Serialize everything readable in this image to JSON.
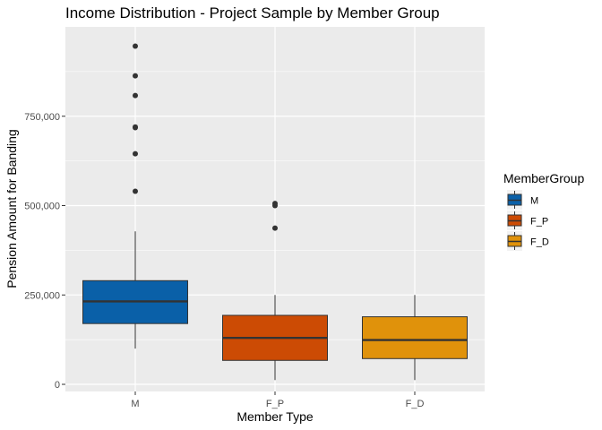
{
  "chart_data": {
    "type": "boxplot",
    "title": "Income Distribution - Project Sample by Member Group",
    "xlabel": "Member Type",
    "ylabel": "Pension Amount for Banding",
    "categories": [
      "M",
      "F_P",
      "F_D"
    ],
    "ylim": [
      -20000,
      1000000
    ],
    "yticks": [
      0,
      250000,
      500000,
      750000
    ],
    "ytick_labels": [
      "0",
      "250,000",
      "500,000",
      "750,000"
    ],
    "grid": true,
    "legend": {
      "title": "MemberGroup",
      "position": "right",
      "entries": [
        "M",
        "F_P",
        "F_D"
      ]
    },
    "series": [
      {
        "name": "M",
        "color": "#0A60A8",
        "whisker_low": 100000,
        "q1": 170000,
        "median": 232000,
        "q3": 290000,
        "whisker_high": 428000,
        "outliers": [
          540000,
          645000,
          718000,
          720000,
          808000,
          863000,
          946000
        ]
      },
      {
        "name": "F_P",
        "color": "#CC4B04",
        "whisker_low": 12000,
        "q1": 67000,
        "median": 130000,
        "q3": 193000,
        "whisker_high": 250000,
        "outliers": [
          437000,
          500000,
          506000
        ]
      },
      {
        "name": "F_D",
        "color": "#E0920B",
        "whisker_low": 12000,
        "q1": 72000,
        "median": 124000,
        "q3": 189000,
        "whisker_high": 250000,
        "outliers": []
      }
    ]
  }
}
